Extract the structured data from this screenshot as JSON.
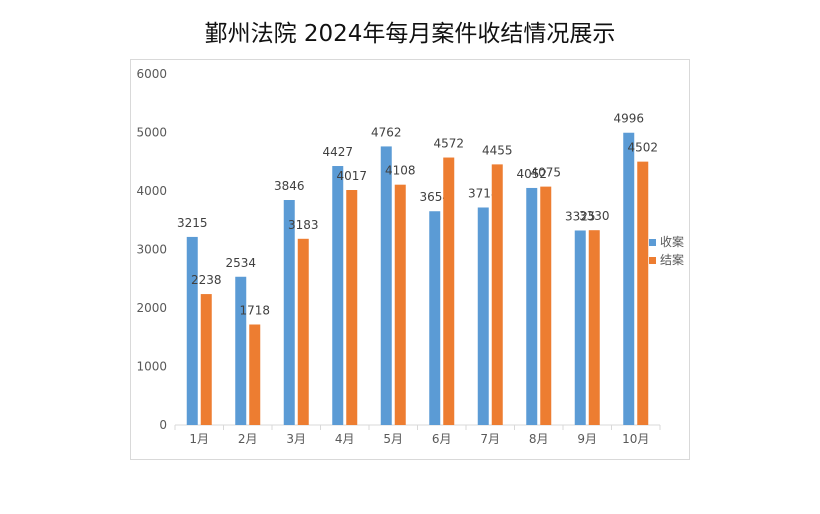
{
  "chart_data": {
    "type": "bar",
    "title": "鄞州法院 2024年每月案件收结情况展示",
    "categories": [
      "1月",
      "2月",
      "3月",
      "4月",
      "5月",
      "6月",
      "7月",
      "8月",
      "9月",
      "10月"
    ],
    "series": [
      {
        "name": "收案",
        "color": "#5b9bd5",
        "values": [
          3215,
          2534,
          3846,
          4427,
          4762,
          3654,
          3718,
          4052,
          3325,
          4996
        ]
      },
      {
        "name": "结案",
        "color": "#ed7d31",
        "values": [
          2238,
          1718,
          3183,
          4017,
          4108,
          4572,
          4455,
          4075,
          3330,
          4502
        ]
      }
    ],
    "ylim": [
      0,
      6000
    ],
    "yticks": [
      0,
      1000,
      2000,
      3000,
      4000,
      5000,
      6000
    ],
    "xlabel": "",
    "ylabel": "",
    "grid": false,
    "legend_position": "right"
  }
}
